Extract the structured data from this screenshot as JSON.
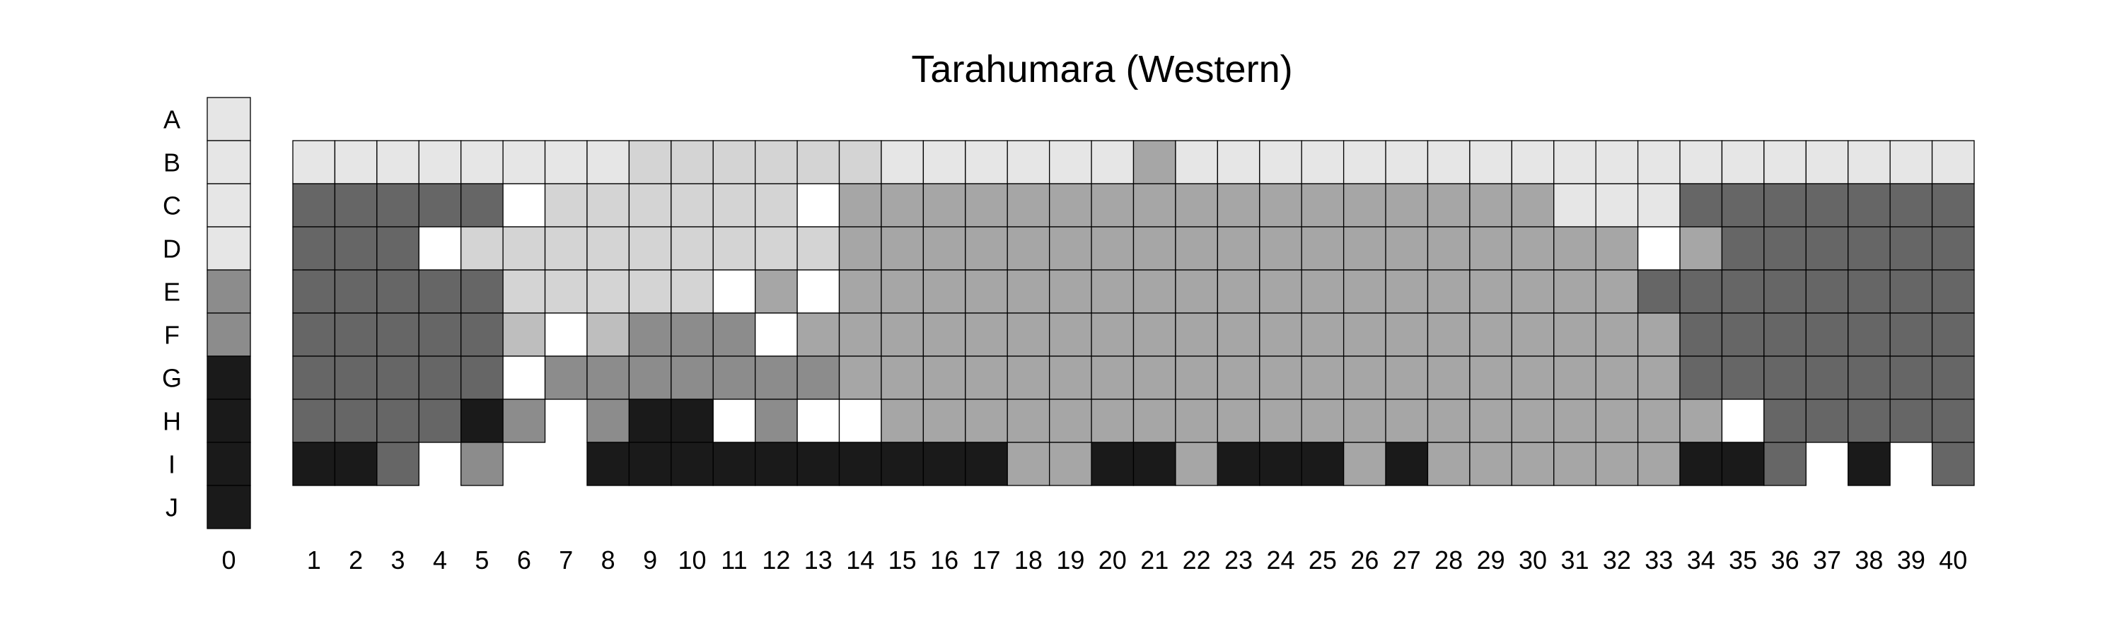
{
  "chart_data": {
    "type": "heatmap",
    "title": "Tarahumara (Western)",
    "row_labels": [
      "A",
      "B",
      "C",
      "D",
      "E",
      "F",
      "G",
      "H",
      "I",
      "J"
    ],
    "column_labels": [
      "0",
      "1",
      "2",
      "3",
      "4",
      "5",
      "6",
      "7",
      "8",
      "9",
      "10",
      "11",
      "12",
      "13",
      "14",
      "15",
      "16",
      "17",
      "18",
      "19",
      "20",
      "21",
      "22",
      "23",
      "24",
      "25",
      "26",
      "27",
      "28",
      "29",
      "30",
      "31",
      "32",
      "33",
      "34",
      "35",
      "36",
      "37",
      "38",
      "39",
      "40"
    ],
    "key_column": {
      "label": "0",
      "rows": [
        "A",
        "B",
        "C",
        "D",
        "E",
        "F",
        "G",
        "H",
        "I",
        "J"
      ],
      "shades": [
        1,
        1,
        1,
        1,
        4,
        4,
        6,
        6,
        6,
        6
      ]
    },
    "shade_colors": {
      "0": "#ffffff",
      "1": "#e6e6e6",
      "2": "#d4d4d4",
      "3": "#a6a6a6",
      "4": "#8c8c8c",
      "5": "#666666",
      "6": "#1a1a1a",
      "7": "#bebebe",
      "8": "#c2c2c2"
    },
    "data_rows": [
      "B",
      "C",
      "D",
      "E",
      "F",
      "G",
      "H",
      "I"
    ],
    "columns": [
      {
        "label": "1",
        "shades": [
          1,
          5,
          5,
          5,
          5,
          5,
          5,
          6
        ]
      },
      {
        "label": "2",
        "shades": [
          1,
          5,
          5,
          5,
          5,
          5,
          5,
          6
        ]
      },
      {
        "label": "3",
        "shades": [
          1,
          5,
          5,
          5,
          5,
          5,
          5,
          5
        ]
      },
      {
        "label": "4",
        "shades": [
          1,
          5,
          0,
          5,
          5,
          5,
          5,
          null
        ]
      },
      {
        "label": "5",
        "shades": [
          1,
          5,
          2,
          5,
          5,
          5,
          6,
          4
        ]
      },
      {
        "label": "6",
        "shades": [
          1,
          0,
          2,
          2,
          7,
          0,
          4,
          null
        ]
      },
      {
        "label": "7",
        "shades": [
          1,
          2,
          2,
          2,
          0,
          4,
          null,
          null
        ]
      },
      {
        "label": "8",
        "shades": [
          1,
          2,
          2,
          2,
          7,
          4,
          4,
          6
        ]
      },
      {
        "label": "9",
        "shades": [
          2,
          2,
          2,
          2,
          4,
          4,
          6,
          6
        ]
      },
      {
        "label": "10",
        "shades": [
          2,
          2,
          2,
          2,
          4,
          4,
          6,
          6
        ]
      },
      {
        "label": "11",
        "shades": [
          2,
          2,
          2,
          0,
          4,
          4,
          0,
          6
        ]
      },
      {
        "label": "12",
        "shades": [
          2,
          2,
          2,
          3,
          0,
          4,
          4,
          6
        ]
      },
      {
        "label": "13",
        "shades": [
          2,
          0,
          2,
          0,
          3,
          4,
          0,
          6
        ]
      },
      {
        "label": "14",
        "shades": [
          2,
          3,
          3,
          3,
          3,
          3,
          0,
          6
        ]
      },
      {
        "label": "15",
        "shades": [
          1,
          3,
          3,
          3,
          3,
          3,
          3,
          6
        ]
      },
      {
        "label": "16",
        "shades": [
          1,
          3,
          3,
          3,
          3,
          3,
          3,
          6
        ]
      },
      {
        "label": "17",
        "shades": [
          1,
          3,
          3,
          3,
          3,
          3,
          3,
          6
        ]
      },
      {
        "label": "18",
        "shades": [
          1,
          3,
          3,
          3,
          3,
          3,
          3,
          3
        ]
      },
      {
        "label": "19",
        "shades": [
          1,
          3,
          3,
          3,
          3,
          3,
          3,
          3
        ]
      },
      {
        "label": "20",
        "shades": [
          1,
          3,
          3,
          3,
          3,
          3,
          3,
          6
        ]
      },
      {
        "label": "21",
        "shades": [
          3,
          3,
          3,
          3,
          3,
          3,
          3,
          6
        ]
      },
      {
        "label": "22",
        "shades": [
          1,
          3,
          3,
          3,
          3,
          3,
          3,
          3
        ]
      },
      {
        "label": "23",
        "shades": [
          1,
          3,
          3,
          3,
          3,
          3,
          3,
          6
        ]
      },
      {
        "label": "24",
        "shades": [
          1,
          3,
          3,
          3,
          3,
          3,
          3,
          6
        ]
      },
      {
        "label": "25",
        "shades": [
          1,
          3,
          3,
          3,
          3,
          3,
          3,
          6
        ]
      },
      {
        "label": "26",
        "shades": [
          1,
          3,
          3,
          3,
          3,
          3,
          3,
          3
        ]
      },
      {
        "label": "27",
        "shades": [
          1,
          3,
          3,
          3,
          3,
          3,
          3,
          6
        ]
      },
      {
        "label": "28",
        "shades": [
          1,
          3,
          3,
          3,
          3,
          3,
          3,
          3
        ]
      },
      {
        "label": "29",
        "shades": [
          1,
          3,
          3,
          3,
          3,
          3,
          3,
          3
        ]
      },
      {
        "label": "30",
        "shades": [
          1,
          3,
          3,
          3,
          3,
          3,
          3,
          3
        ]
      },
      {
        "label": "31",
        "shades": [
          1,
          1,
          3,
          3,
          3,
          3,
          3,
          3
        ]
      },
      {
        "label": "32",
        "shades": [
          1,
          1,
          3,
          3,
          3,
          3,
          3,
          3
        ]
      },
      {
        "label": "33",
        "shades": [
          1,
          1,
          0,
          5,
          3,
          3,
          3,
          3
        ]
      },
      {
        "label": "34",
        "shades": [
          1,
          5,
          3,
          5,
          5,
          5,
          3,
          6
        ]
      },
      {
        "label": "35",
        "shades": [
          1,
          5,
          5,
          5,
          5,
          5,
          0,
          6
        ]
      },
      {
        "label": "36",
        "shades": [
          1,
          5,
          5,
          5,
          5,
          5,
          5,
          5
        ]
      },
      {
        "label": "37",
        "shades": [
          1,
          5,
          5,
          5,
          5,
          5,
          5,
          null
        ]
      },
      {
        "label": "38",
        "shades": [
          1,
          5,
          5,
          5,
          5,
          5,
          5,
          6
        ]
      },
      {
        "label": "39",
        "shades": [
          1,
          5,
          5,
          5,
          5,
          5,
          5,
          null
        ]
      },
      {
        "label": "40",
        "shades": [
          1,
          5,
          5,
          5,
          5,
          5,
          5,
          5
        ]
      }
    ]
  }
}
